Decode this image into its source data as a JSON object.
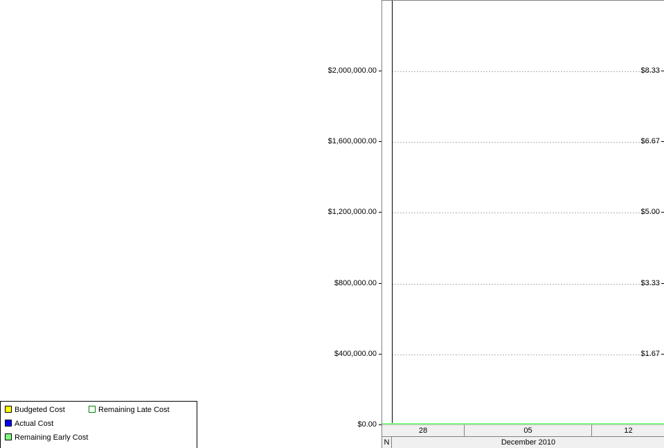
{
  "chart_data": {
    "type": "line",
    "left_axis": {
      "ticks": [
        "$0.00",
        "$400,000.00",
        "$800,000.00",
        "$1,200,000.00",
        "$1,600,000.00",
        "$2,000,000.00"
      ],
      "values": [
        0,
        400000,
        800000,
        1200000,
        1600000,
        2000000
      ]
    },
    "right_axis": {
      "ticks": [
        "$1.67",
        "$3.33",
        "$5.00",
        "$6.67",
        "$8.33"
      ],
      "values": [
        1.67,
        3.33,
        5.0,
        6.67,
        8.33
      ]
    },
    "grid": true,
    "series": [
      {
        "name": "Remaining Early Cost",
        "color": "#80ff80",
        "values": [
          0,
          0,
          0
        ]
      }
    ],
    "x_week_labels": [
      "28",
      "05",
      "12"
    ],
    "x_month_labels": [
      "N",
      "December 2010"
    ]
  },
  "legend": {
    "items": [
      {
        "label": "Budgeted Cost",
        "color": "#ffff00"
      },
      {
        "label": "Remaining Late Cost",
        "color": "#ffffff",
        "border": "#008000"
      },
      {
        "label": "Actual Cost",
        "color": "#0000ff"
      },
      {
        "label": "Remaining Early Cost",
        "color": "#80ff80"
      }
    ]
  }
}
